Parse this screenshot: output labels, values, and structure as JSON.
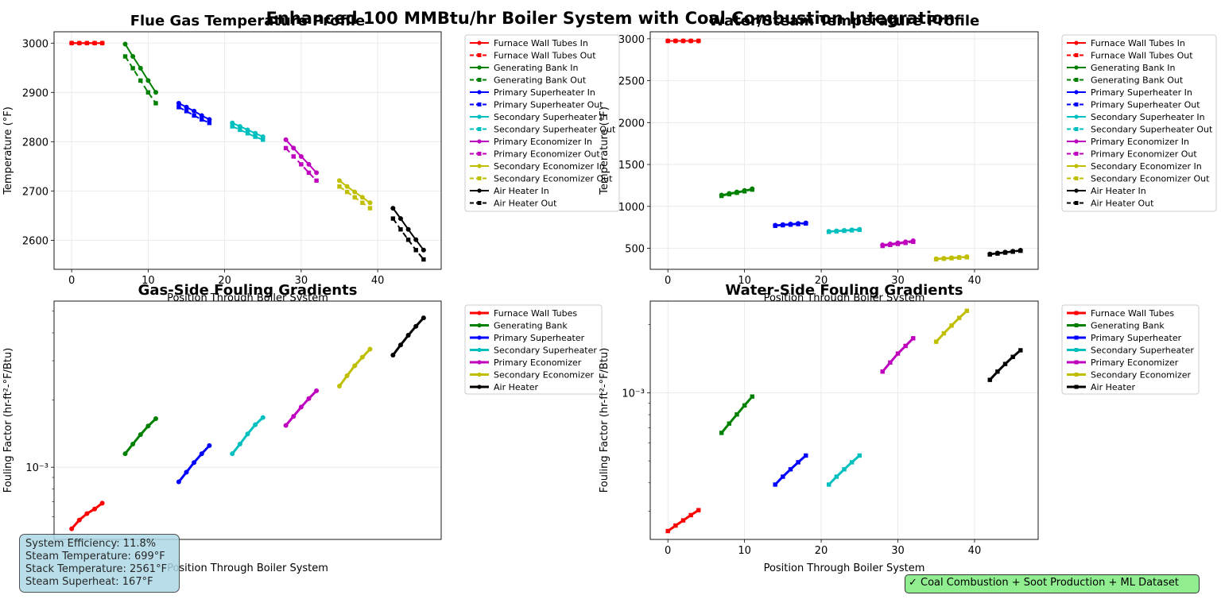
{
  "suptitle": "Enhanced 100 MMBtu/hr Boiler System with Coal Combustion Integration",
  "info_box": {
    "lines": [
      "System Efficiency: 11.8%",
      "Steam Temperature: 699°F",
      "Stack Temperature: 2561°F",
      "Steam Superheat: 167°F"
    ]
  },
  "status_box": "✓ Coal Combustion + Soot Production + ML Dataset",
  "colors": {
    "furnace": "#ff0000",
    "generating": "#008000",
    "primary_sh": "#0000ff",
    "secondary_sh": "#00bfbf",
    "primary_econ": "#bf00bf",
    "secondary_econ": "#bfbf00",
    "air_heater": "#000000"
  },
  "chart_data": [
    {
      "id": "flue",
      "type": "line",
      "title": "Flue Gas Temperature Profile",
      "xlabel": "Position Through Boiler System",
      "ylabel": "Temperature (°F)",
      "xlim": [
        -2.3,
        48.3
      ],
      "ylim": [
        2541,
        3023
      ],
      "xticks": [
        0,
        10,
        20,
        30,
        40
      ],
      "yticks": [
        2600,
        2700,
        2800,
        2900,
        3000
      ],
      "grid": true,
      "legend_position": "outside-right",
      "series": [
        {
          "name": "Furnace Wall Tubes In",
          "color": "#ff0000",
          "dash": false,
          "marker": "circle",
          "x": [
            0,
            1,
            2,
            3,
            4
          ],
          "y": [
            3000,
            3000,
            3000,
            3000,
            3000
          ]
        },
        {
          "name": "Furnace Wall Tubes Out",
          "color": "#ff0000",
          "dash": true,
          "marker": "square",
          "x": [
            0,
            1,
            2,
            3,
            4
          ],
          "y": [
            3000,
            3000,
            3000,
            3000,
            3000
          ]
        },
        {
          "name": "Generating Bank In",
          "color": "#008000",
          "dash": false,
          "marker": "circle",
          "x": [
            7,
            8,
            9,
            10,
            11
          ],
          "y": [
            2998,
            2973,
            2949,
            2924,
            2900
          ]
        },
        {
          "name": "Generating Bank Out",
          "color": "#008000",
          "dash": true,
          "marker": "square",
          "x": [
            7,
            8,
            9,
            10,
            11
          ],
          "y": [
            2973,
            2949,
            2924,
            2900,
            2878
          ]
        },
        {
          "name": "Primary Superheater In",
          "color": "#0000ff",
          "dash": false,
          "marker": "circle",
          "x": [
            14,
            15,
            16,
            17,
            18
          ],
          "y": [
            2878,
            2870,
            2862,
            2853,
            2845
          ]
        },
        {
          "name": "Primary Superheater Out",
          "color": "#0000ff",
          "dash": true,
          "marker": "square",
          "x": [
            14,
            15,
            16,
            17,
            18
          ],
          "y": [
            2870,
            2862,
            2853,
            2845,
            2838
          ]
        },
        {
          "name": "Secondary Superheater In",
          "color": "#00bfbf",
          "dash": false,
          "marker": "circle",
          "x": [
            21,
            22,
            23,
            24,
            25
          ],
          "y": [
            2838,
            2831,
            2824,
            2817,
            2810
          ]
        },
        {
          "name": "Secondary Superheater Out",
          "color": "#00bfbf",
          "dash": true,
          "marker": "square",
          "x": [
            21,
            22,
            23,
            24,
            25
          ],
          "y": [
            2831,
            2824,
            2817,
            2810,
            2804
          ]
        },
        {
          "name": "Primary Economizer In",
          "color": "#bf00bf",
          "dash": false,
          "marker": "circle",
          "x": [
            28,
            29,
            30,
            31,
            32
          ],
          "y": [
            2804,
            2787,
            2770,
            2754,
            2737
          ]
        },
        {
          "name": "Primary Economizer Out",
          "color": "#bf00bf",
          "dash": true,
          "marker": "square",
          "x": [
            28,
            29,
            30,
            31,
            32
          ],
          "y": [
            2787,
            2770,
            2754,
            2737,
            2721
          ]
        },
        {
          "name": "Secondary Economizer In",
          "color": "#bfbf00",
          "dash": false,
          "marker": "circle",
          "x": [
            35,
            36,
            37,
            38,
            39
          ],
          "y": [
            2721,
            2709,
            2698,
            2687,
            2676
          ]
        },
        {
          "name": "Secondary Economizer Out",
          "color": "#bfbf00",
          "dash": true,
          "marker": "square",
          "x": [
            35,
            36,
            37,
            38,
            39
          ],
          "y": [
            2709,
            2698,
            2687,
            2676,
            2665
          ]
        },
        {
          "name": "Air Heater In",
          "color": "#000000",
          "dash": false,
          "marker": "circle",
          "x": [
            42,
            43,
            44,
            45,
            46
          ],
          "y": [
            2665,
            2644,
            2622,
            2601,
            2580
          ]
        },
        {
          "name": "Air Heater Out",
          "color": "#000000",
          "dash": true,
          "marker": "square",
          "x": [
            42,
            43,
            44,
            45,
            46
          ],
          "y": [
            2644,
            2622,
            2601,
            2580,
            2561
          ]
        }
      ]
    },
    {
      "id": "water",
      "type": "line",
      "title": "Water/Steam Temperature Profile",
      "xlabel": "Position Through Boiler System",
      "ylabel": "Temperature (°F)",
      "xlim": [
        -2.3,
        48.3
      ],
      "ylim": [
        249,
        3084
      ],
      "xticks": [
        0,
        10,
        20,
        30,
        40
      ],
      "yticks": [
        500,
        1000,
        1500,
        2000,
        2500,
        3000
      ],
      "grid": true,
      "legend_position": "outside-right",
      "series": [
        {
          "name": "Furnace Wall Tubes In",
          "color": "#ff0000",
          "dash": false,
          "marker": "circle",
          "x": [
            0,
            1,
            2,
            3,
            4
          ],
          "y": [
            2975,
            2975,
            2975,
            2975,
            2975
          ]
        },
        {
          "name": "Furnace Wall Tubes Out",
          "color": "#ff0000",
          "dash": true,
          "marker": "square",
          "x": [
            0,
            1,
            2,
            3,
            4
          ],
          "y": [
            2975,
            2975,
            2975,
            2975,
            2975
          ]
        },
        {
          "name": "Generating Bank In",
          "color": "#008000",
          "dash": false,
          "marker": "circle",
          "x": [
            7,
            8,
            9,
            10,
            11
          ],
          "y": [
            1135,
            1155,
            1172,
            1190,
            1210
          ]
        },
        {
          "name": "Generating Bank Out",
          "color": "#008000",
          "dash": true,
          "marker": "square",
          "x": [
            7,
            8,
            9,
            10,
            11
          ],
          "y": [
            1125,
            1145,
            1162,
            1180,
            1200
          ]
        },
        {
          "name": "Primary Superheater In",
          "color": "#0000ff",
          "dash": false,
          "marker": "circle",
          "x": [
            14,
            15,
            16,
            17,
            18
          ],
          "y": [
            775,
            782,
            789,
            796,
            803
          ]
        },
        {
          "name": "Primary Superheater Out",
          "color": "#0000ff",
          "dash": true,
          "marker": "square",
          "x": [
            14,
            15,
            16,
            17,
            18
          ],
          "y": [
            768,
            775,
            782,
            789,
            796
          ]
        },
        {
          "name": "Secondary Superheater In",
          "color": "#00bfbf",
          "dash": false,
          "marker": "circle",
          "x": [
            21,
            22,
            23,
            24,
            25
          ],
          "y": [
            702,
            708,
            714,
            720,
            726
          ]
        },
        {
          "name": "Secondary Superheater Out",
          "color": "#00bfbf",
          "dash": true,
          "marker": "square",
          "x": [
            21,
            22,
            23,
            24,
            25
          ],
          "y": [
            696,
            702,
            708,
            714,
            720
          ]
        },
        {
          "name": "Primary Economizer In",
          "color": "#bf00bf",
          "dash": false,
          "marker": "circle",
          "x": [
            28,
            29,
            30,
            31,
            32
          ],
          "y": [
            540,
            552,
            564,
            577,
            590
          ]
        },
        {
          "name": "Primary Economizer Out",
          "color": "#bf00bf",
          "dash": true,
          "marker": "square",
          "x": [
            28,
            29,
            30,
            31,
            32
          ],
          "y": [
            528,
            540,
            552,
            564,
            577
          ]
        },
        {
          "name": "Secondary Economizer In",
          "color": "#bfbf00",
          "dash": false,
          "marker": "circle",
          "x": [
            35,
            36,
            37,
            38,
            39
          ],
          "y": [
            375,
            381,
            387,
            393,
            399
          ]
        },
        {
          "name": "Secondary Economizer Out",
          "color": "#bfbf00",
          "dash": true,
          "marker": "square",
          "x": [
            35,
            36,
            37,
            38,
            39
          ],
          "y": [
            369,
            375,
            381,
            387,
            393
          ]
        },
        {
          "name": "Air Heater In",
          "color": "#000000",
          "dash": false,
          "marker": "circle",
          "x": [
            42,
            43,
            44,
            45,
            46
          ],
          "y": [
            432,
            443,
            454,
            465,
            476
          ]
        },
        {
          "name": "Air Heater Out",
          "color": "#000000",
          "dash": true,
          "marker": "square",
          "x": [
            42,
            43,
            44,
            45,
            46
          ],
          "y": [
            426,
            437,
            448,
            459,
            470
          ]
        }
      ]
    },
    {
      "id": "gas_fouling",
      "type": "line",
      "title": "Gas-Side Fouling Gradients",
      "xlabel": "Position Through Boiler System",
      "ylabel": "Fouling Factor (hr-ft²-°F/Btu)",
      "y_scale": "log",
      "xlim": [
        -2.3,
        48.3
      ],
      "ylim": [
        0.000475,
        0.00555
      ],
      "xticks": [],
      "yticks": [
        0.001
      ],
      "ytick_labels": [
        "10⁻³"
      ],
      "grid": true,
      "legend_position": "outside-right",
      "series": [
        {
          "name": "Furnace Wall Tubes",
          "color": "#ff0000",
          "marker": "circle",
          "x": [
            0,
            1,
            2,
            3,
            4
          ],
          "y": [
            0.00053,
            0.00058,
            0.00062,
            0.00065,
            0.00069
          ]
        },
        {
          "name": "Generating Bank",
          "color": "#008000",
          "marker": "circle",
          "x": [
            7,
            8,
            9,
            10,
            11
          ],
          "y": [
            0.00115,
            0.00127,
            0.0014,
            0.00153,
            0.00165
          ]
        },
        {
          "name": "Primary Superheater",
          "color": "#0000ff",
          "marker": "circle",
          "x": [
            14,
            15,
            16,
            17,
            18
          ],
          "y": [
            0.00086,
            0.00095,
            0.00105,
            0.00115,
            0.00125
          ]
        },
        {
          "name": "Secondary Superheater",
          "color": "#00bfbf",
          "marker": "circle",
          "x": [
            21,
            22,
            23,
            24,
            25
          ],
          "y": [
            0.00115,
            0.00127,
            0.00141,
            0.00155,
            0.00167
          ]
        },
        {
          "name": "Primary Economizer",
          "color": "#bf00bf",
          "marker": "circle",
          "x": [
            28,
            29,
            30,
            31,
            32
          ],
          "y": [
            0.00154,
            0.00169,
            0.00186,
            0.00203,
            0.0022
          ]
        },
        {
          "name": "Secondary Economizer",
          "color": "#bfbf00",
          "marker": "circle",
          "x": [
            35,
            36,
            37,
            38,
            39
          ],
          "y": [
            0.00231,
            0.00257,
            0.00285,
            0.00311,
            0.00338
          ]
        },
        {
          "name": "Air Heater",
          "color": "#000000",
          "marker": "circle",
          "x": [
            42,
            43,
            44,
            45,
            46
          ],
          "y": [
            0.00318,
            0.00353,
            0.0039,
            0.00428,
            0.00467
          ]
        }
      ]
    },
    {
      "id": "water_fouling",
      "type": "line",
      "title": "Water-Side Fouling Gradients",
      "xlabel": "Position Through Boiler System",
      "ylabel": "Fouling Factor (hr-ft²-°F/Btu)",
      "y_scale": "log",
      "xlim": [
        -2.3,
        48.3
      ],
      "ylim": [
        0.000225,
        0.00254
      ],
      "xticks": [
        0,
        10,
        20,
        30,
        40
      ],
      "yticks": [
        0.001
      ],
      "ytick_labels": [
        "10⁻³"
      ],
      "grid": true,
      "legend_position": "outside-right",
      "series": [
        {
          "name": "Furnace Wall Tubes",
          "color": "#ff0000",
          "marker": "square",
          "x": [
            0,
            1,
            2,
            3,
            4
          ],
          "y": [
            0.000245,
            0.000259,
            0.000273,
            0.000288,
            0.000303
          ]
        },
        {
          "name": "Generating Bank",
          "color": "#008000",
          "marker": "square",
          "x": [
            7,
            8,
            9,
            10,
            11
          ],
          "y": [
            0.000665,
            0.000731,
            0.000802,
            0.000879,
            0.000962
          ]
        },
        {
          "name": "Primary Superheater",
          "color": "#0000ff",
          "marker": "square",
          "x": [
            14,
            15,
            16,
            17,
            18
          ],
          "y": [
            0.000393,
            0.000426,
            0.000459,
            0.000493,
            0.000528
          ]
        },
        {
          "name": "Secondary Superheater",
          "color": "#00bfbf",
          "marker": "square",
          "x": [
            21,
            22,
            23,
            24,
            25
          ],
          "y": [
            0.000393,
            0.000426,
            0.000459,
            0.000493,
            0.000528
          ]
        },
        {
          "name": "Primary Economizer",
          "color": "#bf00bf",
          "marker": "square",
          "x": [
            28,
            29,
            30,
            31,
            32
          ],
          "y": [
            0.00124,
            0.00136,
            0.00149,
            0.00161,
            0.00174
          ]
        },
        {
          "name": "Secondary Economizer",
          "color": "#bfbf00",
          "marker": "square",
          "x": [
            35,
            36,
            37,
            38,
            39
          ],
          "y": [
            0.00168,
            0.00183,
            0.00198,
            0.00214,
            0.0023
          ]
        },
        {
          "name": "Air Heater",
          "color": "#000000",
          "marker": "square",
          "x": [
            42,
            43,
            44,
            45,
            46
          ],
          "y": [
            0.00114,
            0.00124,
            0.00134,
            0.00144,
            0.00154
          ]
        }
      ]
    }
  ]
}
